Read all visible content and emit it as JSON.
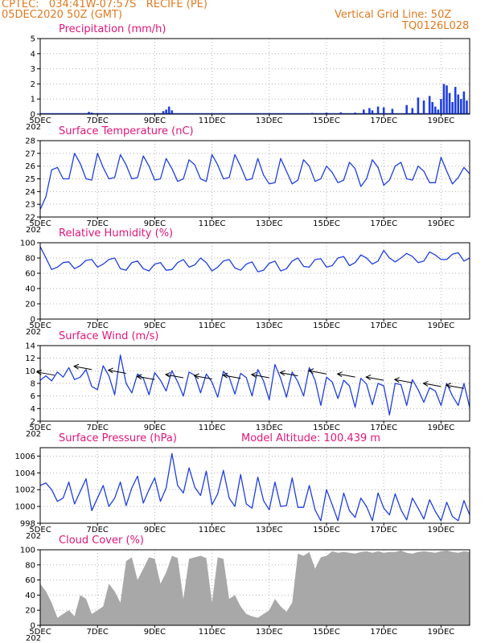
{
  "header": {
    "line1_left": "CPTEC:   034:41W-07:57S   RECIFE (PE)",
    "line2_left": "05DEC2020 50Z (GMT)",
    "line2_right": "Vertical Grid Line: 50Z",
    "line3_right": "TQ0126L028"
  },
  "x_axis": {
    "tick_labels": [
      "5DEC",
      "7DEC",
      "9DEC",
      "11DEC",
      "13DEC",
      "15DEC",
      "17DEC",
      "19DEC"
    ],
    "tick_days": [
      5,
      7,
      9,
      11,
      13,
      15,
      17,
      19
    ],
    "range_days": [
      5,
      20
    ],
    "sub_label": "202"
  },
  "colors": {
    "line": "#1f3fe0",
    "bars_precip": "#1f3fe0",
    "cloud_fill": "#a8a8a8",
    "title": "#e0167a",
    "header": "#e07a1f",
    "wind_arrow": "#000000"
  },
  "chart_data": [
    {
      "type": "bar",
      "title": "Precipitation (mm/h)",
      "ylim": [
        0,
        5
      ],
      "yticks": [
        0,
        1,
        2,
        3,
        4,
        5
      ],
      "grid": true,
      "x": [
        6.7,
        6.8,
        9.3,
        9.4,
        9.5,
        9.6,
        14.5,
        15.0,
        15.5,
        16.0,
        16.3,
        16.5,
        16.6,
        16.8,
        17.0,
        17.3,
        17.8,
        18.0,
        18.2,
        18.4,
        18.6,
        18.7,
        18.8,
        18.9,
        19.0,
        19.1,
        19.2,
        19.3,
        19.4,
        19.5,
        19.6,
        19.7,
        19.8,
        19.9
      ],
      "values": [
        0.15,
        0.1,
        0.2,
        0.3,
        0.5,
        0.25,
        0.08,
        0.1,
        0.12,
        0.1,
        0.3,
        0.4,
        0.25,
        0.5,
        0.45,
        0.35,
        0.6,
        0.4,
        1.1,
        0.9,
        1.2,
        0.8,
        0.5,
        0.3,
        1.0,
        2.0,
        1.9,
        1.4,
        0.8,
        1.8,
        1.3,
        1.0,
        1.5,
        0.9
      ]
    },
    {
      "type": "line",
      "title": "Surface Temperature (nC)",
      "ylim": [
        22,
        28
      ],
      "yticks": [
        22,
        23,
        24,
        25,
        26,
        27,
        28
      ],
      "grid": true,
      "x": [
        5.0,
        5.2,
        5.4,
        5.6,
        5.8,
        6.0,
        6.2,
        6.4,
        6.6,
        6.8,
        7.0,
        7.2,
        7.4,
        7.6,
        7.8,
        8.0,
        8.2,
        8.4,
        8.6,
        8.8,
        9.0,
        9.2,
        9.4,
        9.6,
        9.8,
        10.0,
        10.2,
        10.4,
        10.6,
        10.8,
        11.0,
        11.2,
        11.4,
        11.6,
        11.8,
        12.0,
        12.2,
        12.4,
        12.6,
        12.8,
        13.0,
        13.2,
        13.4,
        13.6,
        13.8,
        14.0,
        14.2,
        14.4,
        14.6,
        14.8,
        15.0,
        15.2,
        15.4,
        15.6,
        15.8,
        16.0,
        16.2,
        16.4,
        16.6,
        16.8,
        17.0,
        17.2,
        17.4,
        17.6,
        17.8,
        18.0,
        18.2,
        18.4,
        18.6,
        18.8,
        19.0,
        19.2,
        19.4,
        19.6,
        19.8,
        20.0
      ],
      "values": [
        22.6,
        23.6,
        25.7,
        25.9,
        25.0,
        25.0,
        27.0,
        26.2,
        25.0,
        24.9,
        27.0,
        25.9,
        25.0,
        25.1,
        26.9,
        26.1,
        25.0,
        25.1,
        26.8,
        26.0,
        24.9,
        25.0,
        26.6,
        25.8,
        24.8,
        25.0,
        26.5,
        26.1,
        25.0,
        24.8,
        26.9,
        26.1,
        25.0,
        25.1,
        26.9,
        26.0,
        24.9,
        25.0,
        26.6,
        25.3,
        24.6,
        24.7,
        26.6,
        25.6,
        24.6,
        24.9,
        26.5,
        26.0,
        24.8,
        25.0,
        26.0,
        25.5,
        24.7,
        24.9,
        26.3,
        25.8,
        24.4,
        25.0,
        26.5,
        25.9,
        24.5,
        24.9,
        26.0,
        26.3,
        25.0,
        24.9,
        26.0,
        25.6,
        24.7,
        24.7,
        26.7,
        25.6,
        24.6,
        25.1,
        25.9,
        25.4
      ]
    },
    {
      "type": "line",
      "title": "Relative Humidity (%)",
      "ylim": [
        0,
        100
      ],
      "yticks": [
        0,
        20,
        40,
        60,
        80,
        100
      ],
      "grid": true,
      "x": [
        5.0,
        5.2,
        5.4,
        5.6,
        5.8,
        6.0,
        6.2,
        6.4,
        6.6,
        6.8,
        7.0,
        7.2,
        7.4,
        7.6,
        7.8,
        8.0,
        8.2,
        8.4,
        8.6,
        8.8,
        9.0,
        9.2,
        9.4,
        9.6,
        9.8,
        10.0,
        10.2,
        10.4,
        10.6,
        10.8,
        11.0,
        11.2,
        11.4,
        11.6,
        11.8,
        12.0,
        12.2,
        12.4,
        12.6,
        12.8,
        13.0,
        13.2,
        13.4,
        13.6,
        13.8,
        14.0,
        14.2,
        14.4,
        14.6,
        14.8,
        15.0,
        15.2,
        15.4,
        15.6,
        15.8,
        16.0,
        16.2,
        16.4,
        16.6,
        16.8,
        17.0,
        17.2,
        17.4,
        17.6,
        17.8,
        18.0,
        18.2,
        18.4,
        18.6,
        18.8,
        19.0,
        19.2,
        19.4,
        19.6,
        19.8,
        20.0
      ],
      "values": [
        95,
        80,
        65,
        68,
        74,
        75,
        66,
        70,
        77,
        78,
        68,
        72,
        78,
        80,
        66,
        64,
        74,
        76,
        66,
        63,
        72,
        74,
        64,
        65,
        74,
        78,
        68,
        71,
        80,
        74,
        63,
        68,
        76,
        78,
        67,
        64,
        72,
        75,
        62,
        64,
        73,
        76,
        63,
        66,
        76,
        80,
        69,
        68,
        78,
        79,
        68,
        70,
        80,
        82,
        70,
        74,
        84,
        80,
        72,
        76,
        90,
        80,
        75,
        80,
        86,
        82,
        74,
        76,
        88,
        84,
        78,
        78,
        85,
        87,
        76,
        80
      ]
    },
    {
      "type": "line",
      "title": "Surface Wind (m/s)",
      "ylim": [
        2,
        14
      ],
      "yticks": [
        2,
        4,
        6,
        8,
        10,
        12,
        14
      ],
      "grid": true,
      "x": [
        5.0,
        5.2,
        5.4,
        5.6,
        5.8,
        6.0,
        6.2,
        6.4,
        6.6,
        6.8,
        7.0,
        7.2,
        7.4,
        7.6,
        7.8,
        8.0,
        8.2,
        8.4,
        8.6,
        8.8,
        9.0,
        9.2,
        9.4,
        9.6,
        9.8,
        10.0,
        10.2,
        10.4,
        10.6,
        10.8,
        11.0,
        11.2,
        11.4,
        11.6,
        11.8,
        12.0,
        12.2,
        12.4,
        12.6,
        12.8,
        13.0,
        13.2,
        13.4,
        13.6,
        13.8,
        14.0,
        14.2,
        14.4,
        14.6,
        14.8,
        15.0,
        15.2,
        15.4,
        15.6,
        15.8,
        16.0,
        16.2,
        16.4,
        16.6,
        16.8,
        17.0,
        17.2,
        17.4,
        17.6,
        17.8,
        18.0,
        18.2,
        18.4,
        18.6,
        18.8,
        19.0,
        19.2,
        19.4,
        19.6,
        19.8,
        20.0
      ],
      "values": [
        8.5,
        9.2,
        8.4,
        9.8,
        9.0,
        10.5,
        8.6,
        9.0,
        10.2,
        7.5,
        7.0,
        10.8,
        9.2,
        6.2,
        12.5,
        8.0,
        6.5,
        9.5,
        8.8,
        6.2,
        9.7,
        8.5,
        6.8,
        10.0,
        8.2,
        6.0,
        9.8,
        9.3,
        6.5,
        9.5,
        8.2,
        5.8,
        9.9,
        9.0,
        6.3,
        9.6,
        8.9,
        6.0,
        10.2,
        8.4,
        5.4,
        11.0,
        8.8,
        5.8,
        9.8,
        8.3,
        6.0,
        10.5,
        8.5,
        4.5,
        9.0,
        8.2,
        5.6,
        8.5,
        7.6,
        4.2,
        8.8,
        7.9,
        4.6,
        8.0,
        7.6,
        3.0,
        8.0,
        7.8,
        4.5,
        8.6,
        7.0,
        5.0,
        7.3,
        6.8,
        4.5,
        8.0,
        6.0,
        4.5,
        8.0,
        4.2
      ],
      "arrows": {
        "x": [
          5.5,
          6.8,
          8.0,
          9.0,
          10.0,
          11.0,
          12.0,
          13.0,
          14.0,
          15.0,
          16.0,
          17.0,
          18.0,
          19.0,
          19.8
        ],
        "speed": [
          9.3,
          10.2,
          9.6,
          8.6,
          8.9,
          8.7,
          8.8,
          8.9,
          9.2,
          9.5,
          9.0,
          8.5,
          8.1,
          7.5,
          7.2
        ]
      }
    },
    {
      "type": "line",
      "title": "Surface Pressure (hPa)",
      "annotation": "Model Altitude: 100.439 m",
      "ylim": [
        998,
        1007
      ],
      "yticks": [
        998,
        1000,
        1002,
        1004,
        1006
      ],
      "grid": true,
      "x": [
        5.0,
        5.2,
        5.4,
        5.6,
        5.8,
        6.0,
        6.2,
        6.4,
        6.6,
        6.8,
        7.0,
        7.2,
        7.4,
        7.6,
        7.8,
        8.0,
        8.2,
        8.4,
        8.6,
        8.8,
        9.0,
        9.2,
        9.4,
        9.6,
        9.8,
        10.0,
        10.2,
        10.4,
        10.6,
        10.8,
        11.0,
        11.2,
        11.4,
        11.6,
        11.8,
        12.0,
        12.2,
        12.4,
        12.6,
        12.8,
        13.0,
        13.2,
        13.4,
        13.6,
        13.8,
        14.0,
        14.2,
        14.4,
        14.6,
        14.8,
        15.0,
        15.2,
        15.4,
        15.6,
        15.8,
        16.0,
        16.2,
        16.4,
        16.6,
        16.8,
        17.0,
        17.2,
        17.4,
        17.6,
        17.8,
        18.0,
        18.2,
        18.4,
        18.6,
        18.8,
        19.0,
        19.2,
        19.4,
        19.6,
        19.8,
        20.0
      ],
      "values": [
        1002.5,
        1002.8,
        1002.0,
        1000.6,
        1001.0,
        1002.9,
        1000.3,
        1001.8,
        1003.3,
        999.5,
        1001.0,
        1002.5,
        1000.0,
        1001.0,
        1002.9,
        1000.1,
        1002.2,
        1003.6,
        1000.4,
        1002.0,
        1003.4,
        1000.6,
        1002.2,
        1006.3,
        1002.5,
        1001.6,
        1004.6,
        1002.3,
        1001.3,
        1004.2,
        1000.2,
        1001.5,
        1004.3,
        1001.0,
        1000.0,
        1003.8,
        1000.3,
        999.8,
        1003.5,
        1000.7,
        999.6,
        1002.9,
        1000.0,
        1000.1,
        1003.4,
        999.9,
        999.9,
        1002.5,
        999.6,
        998.3,
        1002.0,
        1000.2,
        998.3,
        1001.6,
        999.5,
        998.7,
        1001.0,
        1000.0,
        998.3,
        1001.6,
        999.8,
        999.0,
        1001.5,
        999.6,
        998.4,
        1001.0,
        999.8,
        998.5,
        1000.8,
        999.4,
        998.3,
        1000.5,
        998.8,
        998.3,
        1000.7,
        999.0
      ]
    },
    {
      "type": "area",
      "title": "Cloud Cover (%)",
      "ylim": [
        0,
        100
      ],
      "yticks": [
        0,
        20,
        40,
        60,
        80,
        100
      ],
      "grid": true,
      "x": [
        5.0,
        5.2,
        5.4,
        5.6,
        5.8,
        6.0,
        6.2,
        6.4,
        6.6,
        6.8,
        7.0,
        7.2,
        7.4,
        7.6,
        7.8,
        8.0,
        8.2,
        8.4,
        8.6,
        8.8,
        9.0,
        9.2,
        9.4,
        9.6,
        9.8,
        10.0,
        10.2,
        10.4,
        10.6,
        10.8,
        11.0,
        11.2,
        11.4,
        11.6,
        11.8,
        12.0,
        12.2,
        12.4,
        12.6,
        12.8,
        13.0,
        13.2,
        13.4,
        13.6,
        13.8,
        14.0,
        14.2,
        14.4,
        14.6,
        14.8,
        15.0,
        15.2,
        15.4,
        15.6,
        15.8,
        16.0,
        16.2,
        16.4,
        16.6,
        16.8,
        17.0,
        17.2,
        17.4,
        17.6,
        17.8,
        18.0,
        18.2,
        18.4,
        18.6,
        18.8,
        19.0,
        19.2,
        19.4,
        19.6,
        19.8,
        20.0
      ],
      "values": [
        55,
        45,
        30,
        10,
        15,
        20,
        12,
        40,
        35,
        15,
        20,
        25,
        55,
        45,
        30,
        85,
        90,
        60,
        75,
        90,
        88,
        55,
        70,
        92,
        89,
        35,
        88,
        90,
        92,
        89,
        30,
        90,
        88,
        35,
        40,
        25,
        15,
        12,
        10,
        15,
        20,
        35,
        25,
        18,
        30,
        95,
        92,
        97,
        75,
        90,
        92,
        98,
        96,
        97,
        96,
        95,
        97,
        98,
        96,
        98,
        96,
        97,
        97,
        99,
        96,
        95,
        97,
        98,
        97,
        96,
        98,
        99,
        97,
        96,
        98,
        97
      ]
    }
  ]
}
